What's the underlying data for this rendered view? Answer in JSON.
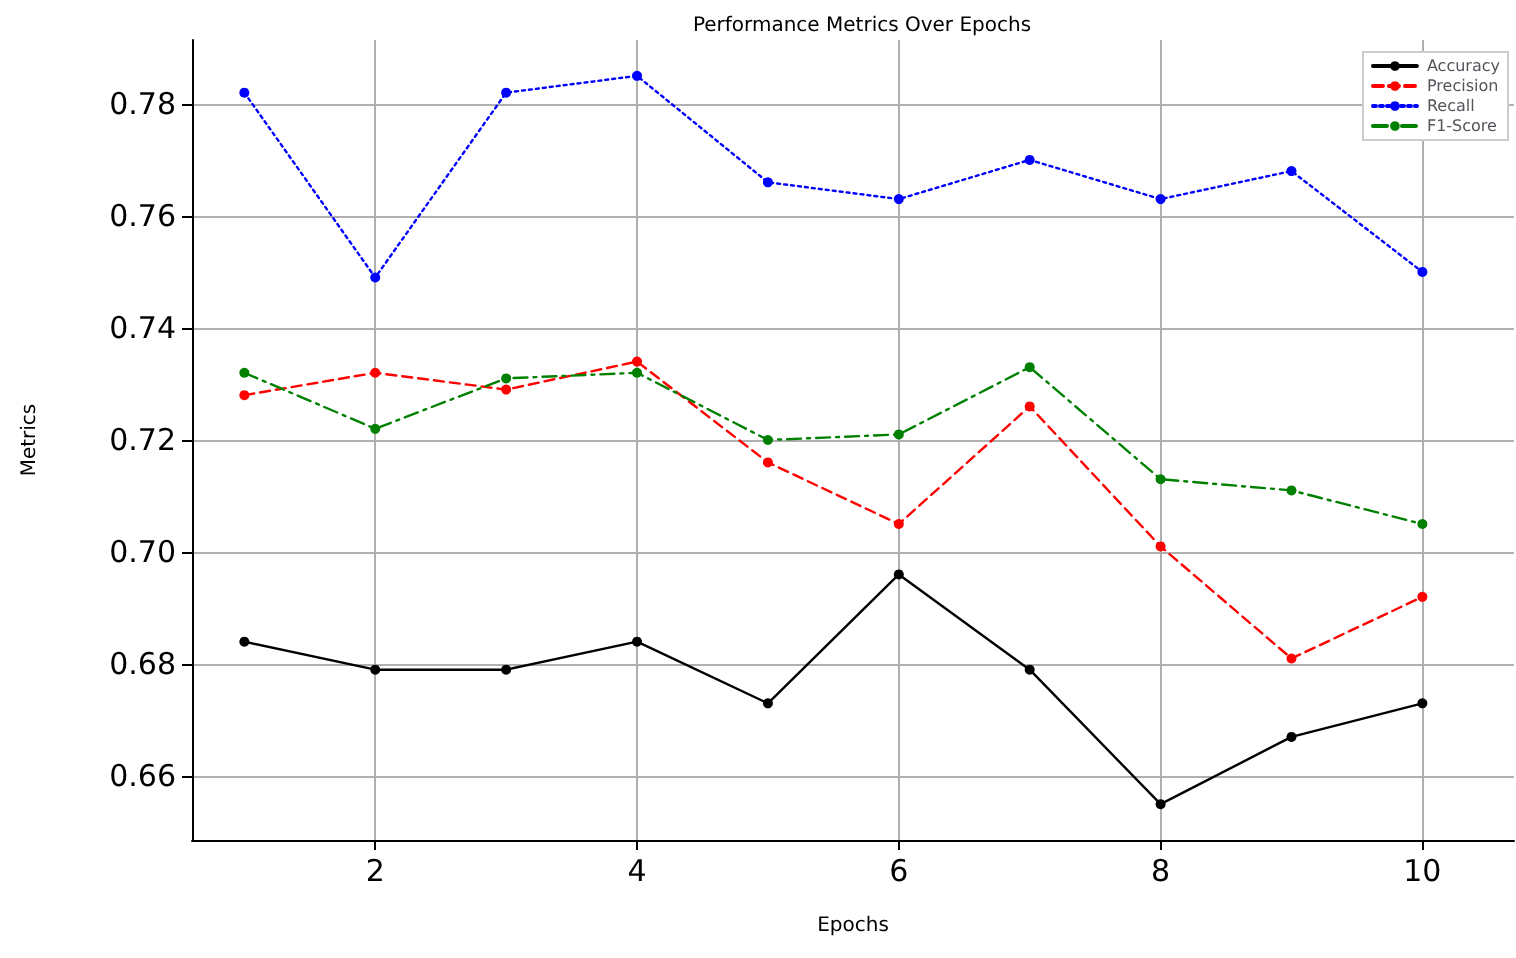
{
  "chart_data": {
    "type": "line",
    "title": "Performance Metrics Over Epochs",
    "xlabel": "Epochs",
    "ylabel": "Metrics",
    "x": [
      1,
      2,
      3,
      4,
      5,
      6,
      7,
      8,
      9,
      10
    ],
    "series": [
      {
        "name": "Accuracy",
        "color": "#000000",
        "line_style": "solid",
        "values": [
          0.684,
          0.679,
          0.679,
          0.684,
          0.673,
          0.696,
          0.679,
          0.655,
          0.667,
          0.673
        ]
      },
      {
        "name": "Precision",
        "color": "#ff0000",
        "line_style": "dashed",
        "values": [
          0.728,
          0.732,
          0.729,
          0.734,
          0.716,
          0.705,
          0.726,
          0.701,
          0.681,
          0.692
        ]
      },
      {
        "name": "Recall",
        "color": "#0000ff",
        "line_style": "dotted",
        "values": [
          0.782,
          0.749,
          0.782,
          0.785,
          0.766,
          0.763,
          0.77,
          0.763,
          0.768,
          0.75
        ]
      },
      {
        "name": "F1-Score",
        "color": "#008000",
        "line_style": "dashdot",
        "values": [
          0.732,
          0.722,
          0.731,
          0.732,
          0.72,
          0.721,
          0.733,
          0.713,
          0.711,
          0.705
        ]
      }
    ],
    "xlim": [
      0.6,
      10.7
    ],
    "xticks": [
      2,
      4,
      6,
      8,
      10
    ],
    "ylim": [
      0.6486,
      0.7914
    ],
    "yticks": [
      {
        "value": 0.66,
        "label": "0.66"
      },
      {
        "value": 0.68,
        "label": "0.68"
      },
      {
        "value": 0.7,
        "label": "0.70"
      },
      {
        "value": 0.72,
        "label": "0.72"
      },
      {
        "value": 0.74,
        "label": "0.74"
      },
      {
        "value": 0.76,
        "label": "0.76"
      },
      {
        "value": 0.78,
        "label": "0.78"
      }
    ],
    "grid": true,
    "legend": "top right",
    "marker": "circle"
  }
}
